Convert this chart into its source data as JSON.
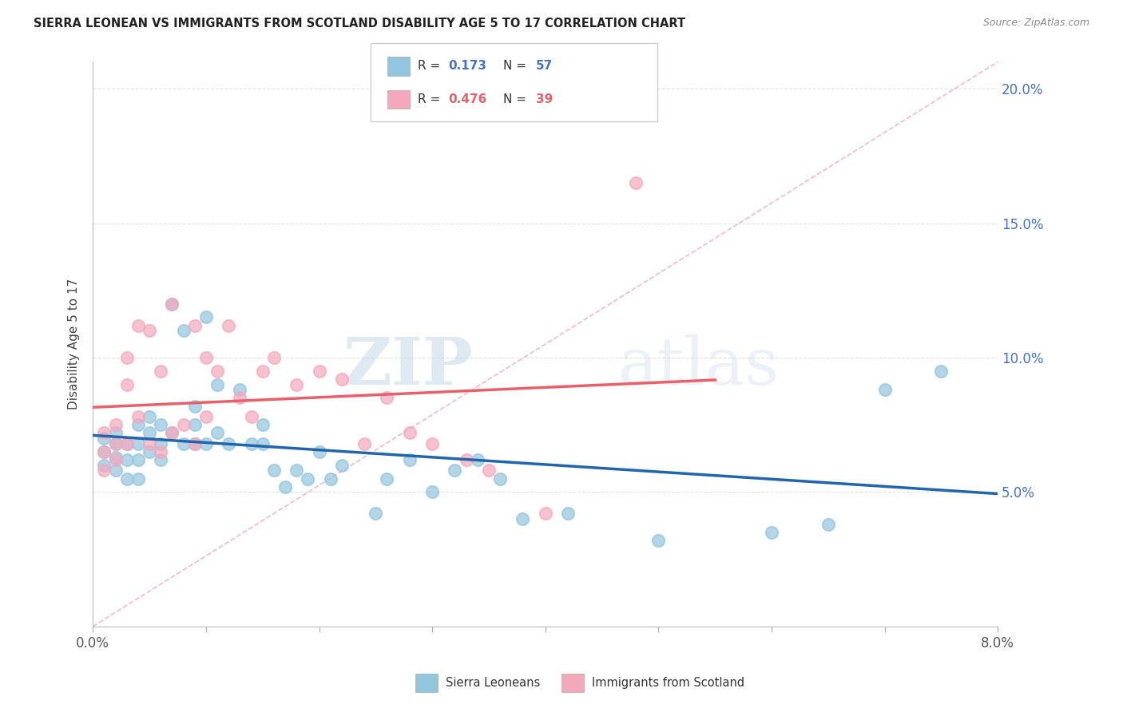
{
  "title": "SIERRA LEONEAN VS IMMIGRANTS FROM SCOTLAND DISABILITY AGE 5 TO 17 CORRELATION CHART",
  "source": "Source: ZipAtlas.com",
  "ylabel": "Disability Age 5 to 17",
  "xlim": [
    0.0,
    0.08
  ],
  "ylim": [
    0.0,
    0.21
  ],
  "x_ticks": [
    0.0,
    0.01,
    0.02,
    0.03,
    0.04,
    0.05,
    0.06,
    0.07,
    0.08
  ],
  "y_ticks": [
    0.0,
    0.05,
    0.1,
    0.15,
    0.2
  ],
  "legend_r1_val": "0.173",
  "legend_n1_val": "57",
  "legend_r2_val": "0.476",
  "legend_n2_val": "39",
  "blue_color": "#92C5DE",
  "pink_color": "#F4A8BC",
  "blue_line_color": "#2166AC",
  "pink_line_color": "#E8606A",
  "diagonal_color": "#F4A8BC",
  "watermark_zip": "ZIP",
  "watermark_atlas": "atlas",
  "blue_scatter_x": [
    0.001,
    0.001,
    0.001,
    0.002,
    0.002,
    0.002,
    0.002,
    0.003,
    0.003,
    0.003,
    0.004,
    0.004,
    0.004,
    0.004,
    0.005,
    0.005,
    0.005,
    0.006,
    0.006,
    0.006,
    0.007,
    0.007,
    0.008,
    0.008,
    0.009,
    0.009,
    0.009,
    0.01,
    0.01,
    0.011,
    0.011,
    0.012,
    0.013,
    0.014,
    0.015,
    0.015,
    0.016,
    0.017,
    0.018,
    0.019,
    0.02,
    0.021,
    0.022,
    0.025,
    0.026,
    0.028,
    0.03,
    0.032,
    0.034,
    0.036,
    0.038,
    0.042,
    0.05,
    0.06,
    0.065,
    0.07,
    0.075
  ],
  "blue_scatter_y": [
    0.07,
    0.065,
    0.06,
    0.072,
    0.068,
    0.063,
    0.058,
    0.068,
    0.062,
    0.055,
    0.075,
    0.068,
    0.062,
    0.055,
    0.078,
    0.072,
    0.065,
    0.075,
    0.068,
    0.062,
    0.12,
    0.072,
    0.11,
    0.068,
    0.082,
    0.075,
    0.068,
    0.115,
    0.068,
    0.09,
    0.072,
    0.068,
    0.088,
    0.068,
    0.075,
    0.068,
    0.058,
    0.052,
    0.058,
    0.055,
    0.065,
    0.055,
    0.06,
    0.042,
    0.055,
    0.062,
    0.05,
    0.058,
    0.062,
    0.055,
    0.04,
    0.042,
    0.032,
    0.035,
    0.038,
    0.088,
    0.095
  ],
  "pink_scatter_x": [
    0.001,
    0.001,
    0.001,
    0.002,
    0.002,
    0.002,
    0.003,
    0.003,
    0.003,
    0.004,
    0.004,
    0.005,
    0.005,
    0.006,
    0.006,
    0.007,
    0.007,
    0.008,
    0.009,
    0.009,
    0.01,
    0.01,
    0.011,
    0.012,
    0.013,
    0.014,
    0.015,
    0.016,
    0.018,
    0.02,
    0.022,
    0.024,
    0.026,
    0.028,
    0.03,
    0.033,
    0.035,
    0.04,
    0.048
  ],
  "pink_scatter_y": [
    0.072,
    0.065,
    0.058,
    0.075,
    0.068,
    0.062,
    0.1,
    0.09,
    0.068,
    0.112,
    0.078,
    0.11,
    0.068,
    0.095,
    0.065,
    0.12,
    0.072,
    0.075,
    0.112,
    0.068,
    0.1,
    0.078,
    0.095,
    0.112,
    0.085,
    0.078,
    0.095,
    0.1,
    0.09,
    0.095,
    0.092,
    0.068,
    0.085,
    0.072,
    0.068,
    0.062,
    0.058,
    0.042,
    0.165
  ]
}
